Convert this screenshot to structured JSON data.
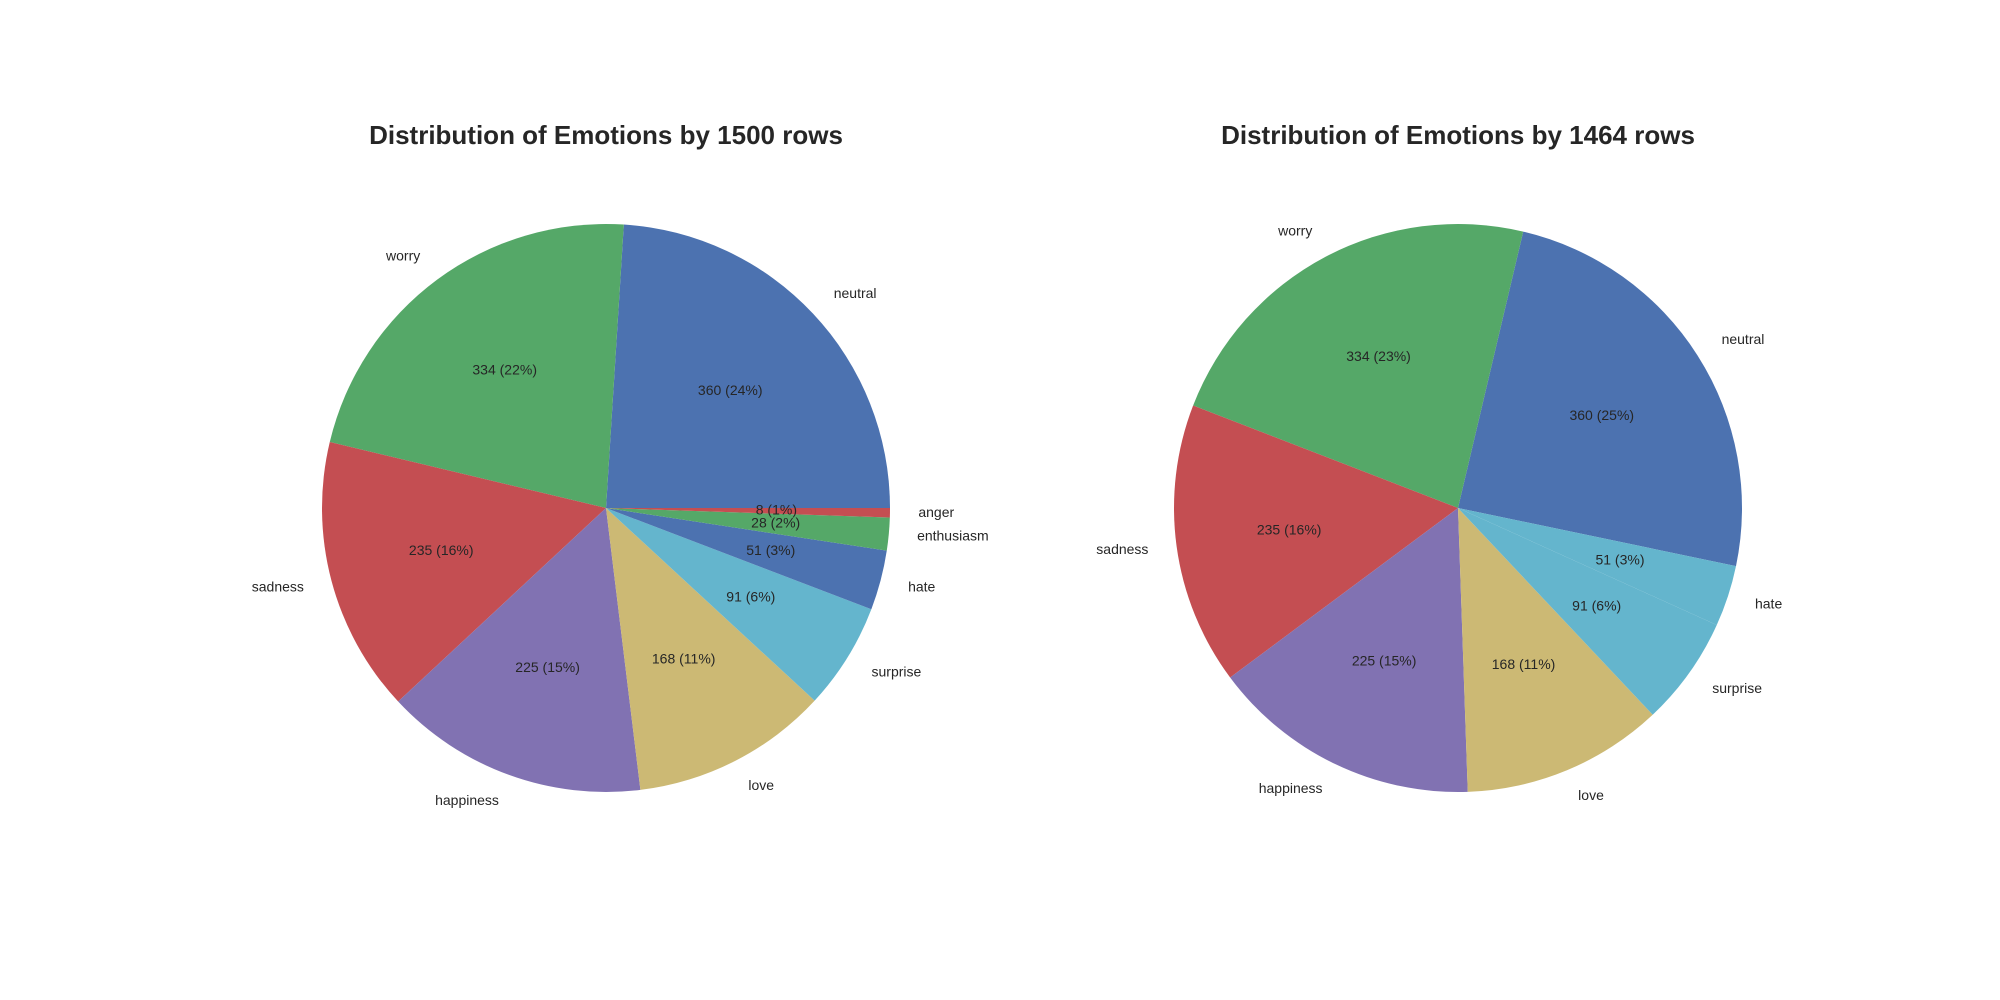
{
  "chart_data": [
    {
      "type": "pie",
      "title": "Distribution of Emotions by 1500 rows",
      "categories": [
        "neutral",
        "worry",
        "sadness",
        "happiness",
        "love",
        "surprise",
        "hate",
        "enthusiasm",
        "anger"
      ],
      "values": [
        360,
        334,
        235,
        225,
        168,
        91,
        51,
        28,
        8
      ],
      "value_labels": [
        "360 (24%)",
        "334 (22%)",
        "235 (16%)",
        "225 (15%)",
        "168 (11%)",
        "91 (6%)",
        "51 (3%)",
        "28 (2%)",
        "8 (1%)"
      ],
      "colors": [
        "#4c72b0",
        "#55a868",
        "#c44e52",
        "#8172b2",
        "#ccb974",
        "#64b5cd",
        "#4c72b0",
        "#55a868",
        "#c44e52"
      ],
      "start_angle_deg": 0,
      "direction": "counterclockwise"
    },
    {
      "type": "pie",
      "title": "Distribution of Emotions by 1464 rows",
      "categories": [
        "neutral",
        "worry",
        "sadness",
        "happiness",
        "love",
        "surprise",
        "hate"
      ],
      "values": [
        360,
        334,
        235,
        225,
        168,
        91,
        51
      ],
      "value_labels": [
        "360 (25%)",
        "334 (23%)",
        "235 (16%)",
        "225 (15%)",
        "168 (11%)",
        "91 (6%)",
        "51 (3%)"
      ],
      "colors": [
        "#4c72b0",
        "#55a868",
        "#c44e52",
        "#8172b2",
        "#ccb974",
        "#64b5cd",
        "#64b5cd"
      ],
      "start_angle_deg": -11.8,
      "direction": "counterclockwise"
    }
  ]
}
